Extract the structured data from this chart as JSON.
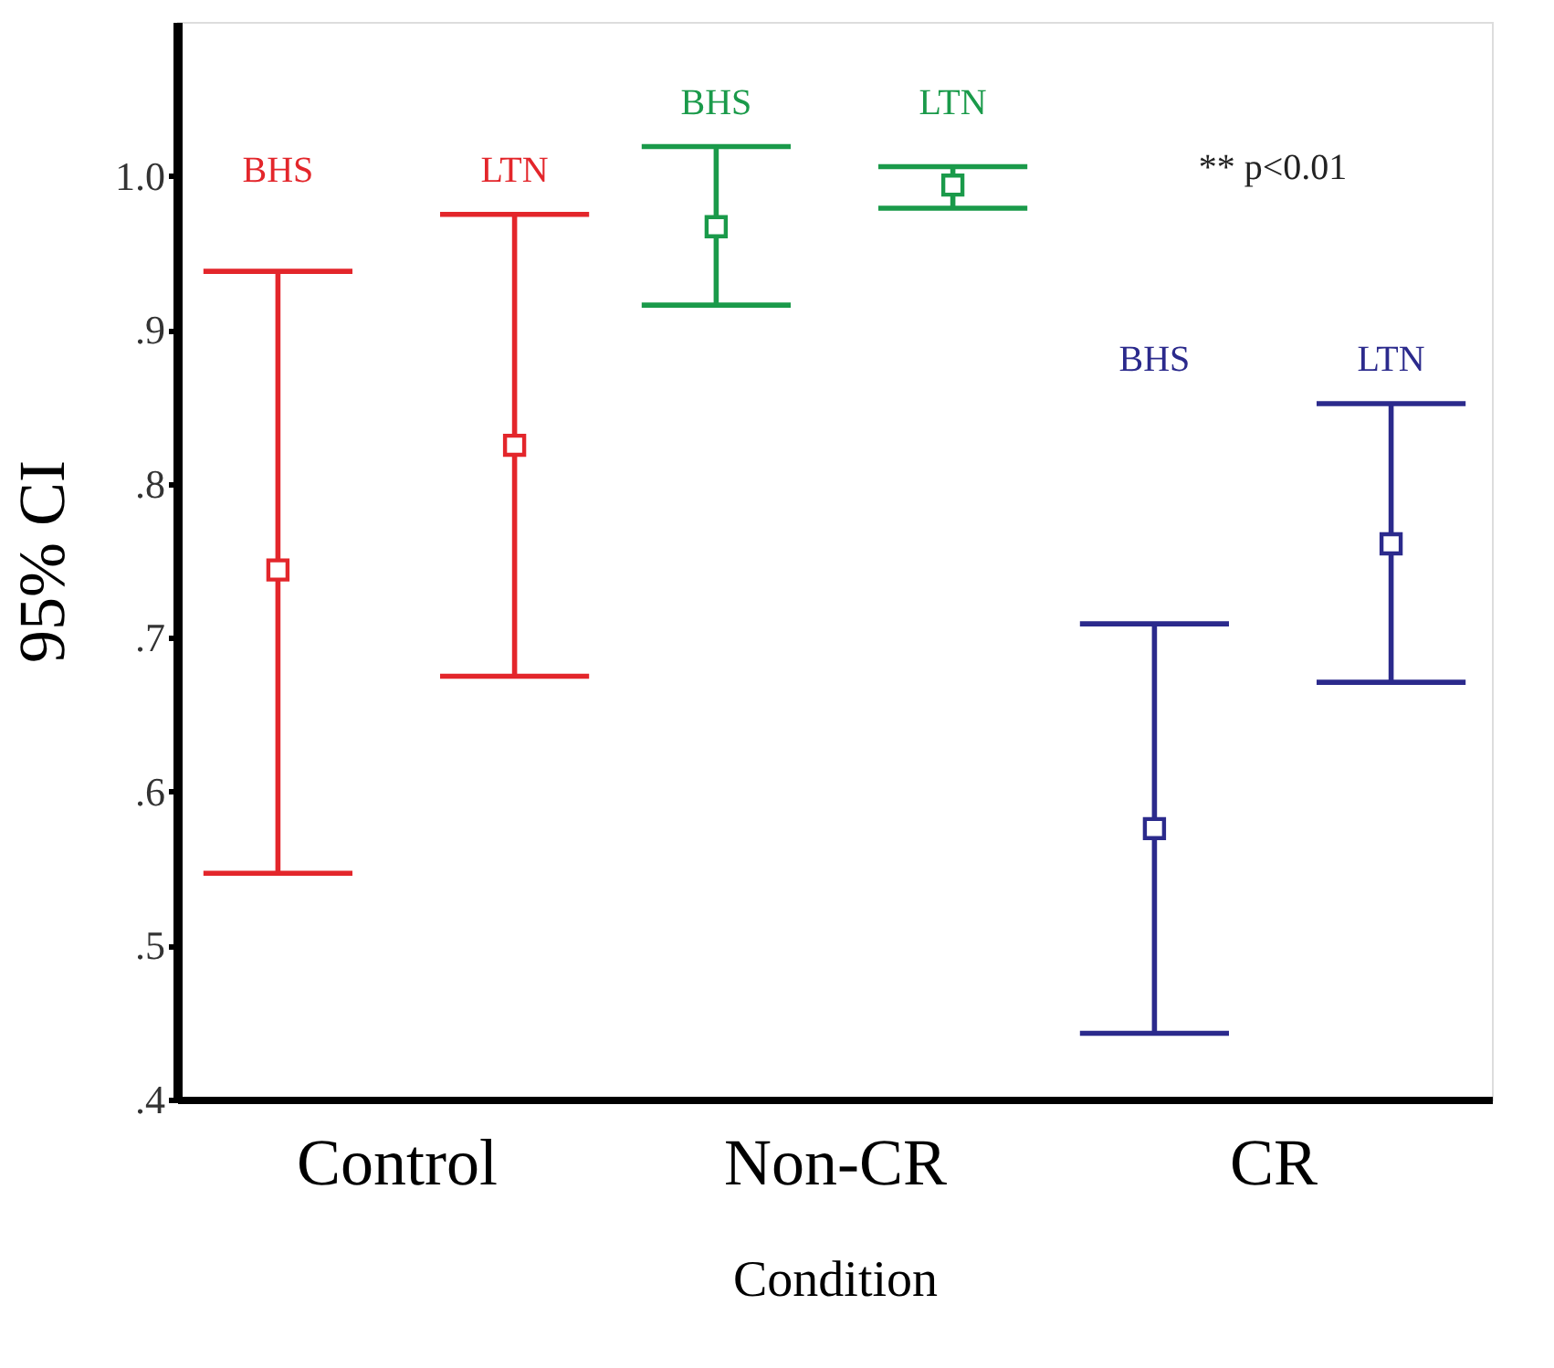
{
  "chart_data": {
    "type": "scatter",
    "xlabel": "Condition",
    "ylabel": "95% CI",
    "categories": [
      "Control",
      "Non-CR",
      "CR"
    ],
    "series": [
      {
        "name": "BHS",
        "values": [
          0.744,
          0.967,
          0.576
        ],
        "errors": [
          [
            0.547,
            0.938
          ],
          [
            0.916,
            1.019
          ],
          [
            0.443,
            0.709
          ]
        ],
        "colors": [
          "#e3262b",
          "#1a9a4a",
          "#2b2a8c"
        ]
      },
      {
        "name": "LTN",
        "values": [
          0.825,
          0.994,
          0.761
        ],
        "errors": [
          [
            0.675,
            0.975
          ],
          [
            0.979,
            1.006
          ],
          [
            0.671,
            0.852
          ]
        ],
        "colors": [
          "#e3262b",
          "#1a9a4a",
          "#2b2a8c"
        ]
      }
    ],
    "ylim": [
      0.4,
      1.1
    ],
    "yticks": [
      {
        "value": 0.4,
        "label": ".4"
      },
      {
        "value": 0.5,
        "label": ".5"
      },
      {
        "value": 0.6,
        "label": ".6"
      },
      {
        "value": 0.7,
        "label": ".7"
      },
      {
        "value": 0.8,
        "label": ".8"
      },
      {
        "value": 0.9,
        "label": ".9"
      },
      {
        "value": 1.0,
        "label": "1.0"
      }
    ],
    "annotations": [
      "** p<0.01"
    ],
    "marker": "square",
    "grid": false
  }
}
